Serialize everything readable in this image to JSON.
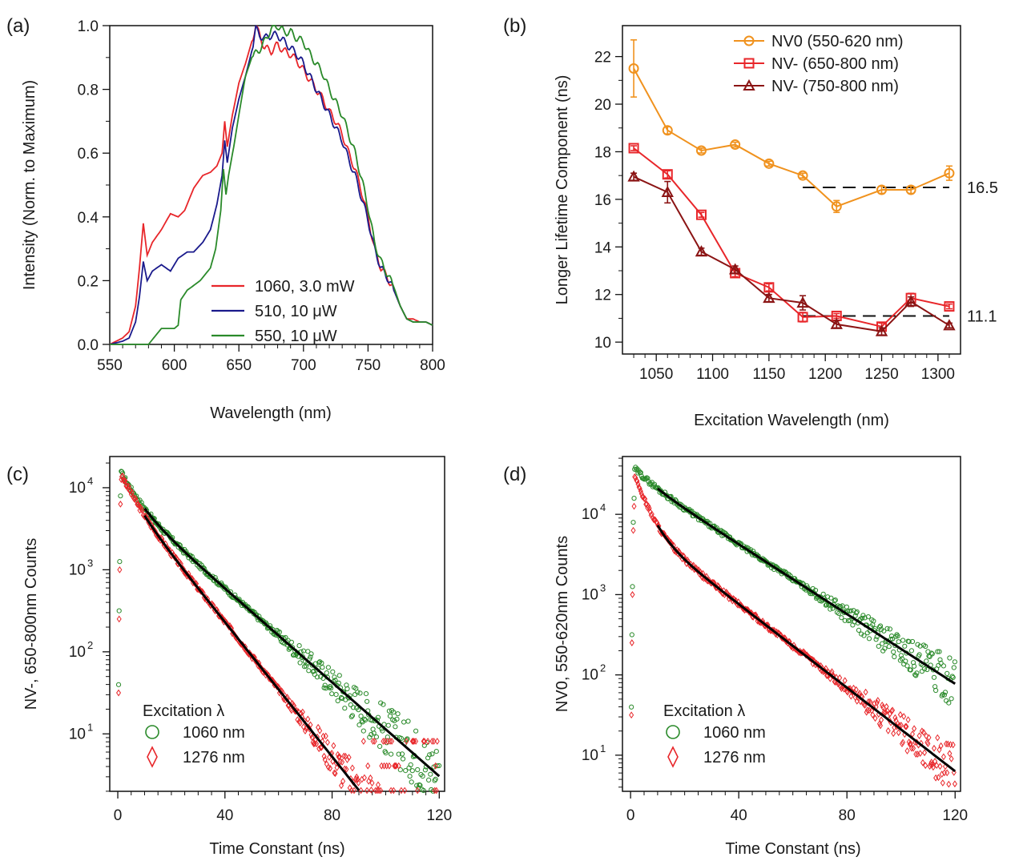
{
  "figure": {
    "description_panels": [
      "(a)",
      "(b)",
      "(c)",
      "(d)"
    ]
  },
  "chart_data": [
    {
      "panel": "(a)",
      "type": "line",
      "title": "",
      "xlabel": "Wavelength (nm)",
      "ylabel": "Intensity (Norm. to Maximum)",
      "xlim": [
        550,
        800
      ],
      "ylim": [
        0,
        1.0
      ],
      "xticks": [
        550,
        600,
        650,
        700,
        750,
        800
      ],
      "yticks": [
        0.0,
        0.2,
        0.4,
        0.6,
        0.8,
        1.0
      ],
      "ytick_labels": [
        "0.0",
        "0.2",
        "0.4",
        "0.6",
        "0.8",
        "1.0"
      ],
      "legend_position": "bottom-right",
      "series": [
        {
          "name": "1060, 3.0 mW",
          "color": "#e8262a",
          "x": [
            550,
            560,
            565,
            570,
            573,
            576,
            579,
            583,
            590,
            597,
            603,
            608,
            615,
            622,
            628,
            633,
            637,
            639,
            641,
            645,
            650,
            655,
            660,
            663,
            666,
            670,
            675,
            680,
            685,
            690,
            695,
            700,
            705,
            710,
            715,
            720,
            725,
            730,
            735,
            740,
            745,
            750,
            755,
            760,
            765,
            770,
            775,
            780,
            785,
            790,
            795,
            800
          ],
          "y": [
            0.0,
            0.02,
            0.04,
            0.12,
            0.24,
            0.38,
            0.28,
            0.32,
            0.36,
            0.41,
            0.4,
            0.42,
            0.49,
            0.53,
            0.54,
            0.56,
            0.6,
            0.7,
            0.62,
            0.72,
            0.82,
            0.88,
            0.95,
            1.0,
            0.97,
            0.93,
            0.92,
            0.94,
            0.92,
            0.91,
            0.89,
            0.86,
            0.83,
            0.8,
            0.77,
            0.73,
            0.7,
            0.66,
            0.6,
            0.55,
            0.48,
            0.4,
            0.3,
            0.24,
            0.21,
            0.17,
            0.12,
            0.08,
            0.08,
            0.07,
            0.07,
            0.06
          ]
        },
        {
          "name": "510, 10 μW",
          "color": "#1a1a8c",
          "x": [
            550,
            560,
            565,
            570,
            573,
            576,
            579,
            583,
            590,
            597,
            603,
            610,
            615,
            622,
            628,
            633,
            637,
            639,
            641,
            645,
            650,
            655,
            660,
            663,
            666,
            670,
            675,
            680,
            685,
            690,
            695,
            700,
            705,
            710,
            715,
            720,
            725,
            730,
            735,
            740,
            745,
            750,
            755,
            760,
            765,
            770,
            775,
            780,
            785,
            790,
            795,
            800
          ],
          "y": [
            0.0,
            0.01,
            0.02,
            0.07,
            0.15,
            0.26,
            0.2,
            0.23,
            0.25,
            0.23,
            0.27,
            0.29,
            0.29,
            0.32,
            0.36,
            0.44,
            0.53,
            0.64,
            0.57,
            0.68,
            0.77,
            0.84,
            0.92,
            0.99,
            0.97,
            0.96,
            0.97,
            0.97,
            0.95,
            0.93,
            0.91,
            0.88,
            0.84,
            0.8,
            0.76,
            0.72,
            0.68,
            0.64,
            0.58,
            0.53,
            0.46,
            0.39,
            0.3,
            0.24,
            0.21,
            0.17,
            0.12,
            0.08,
            0.07,
            0.07,
            0.07,
            0.06
          ]
        },
        {
          "name": "550, 10 μW",
          "color": "#2a8a2a",
          "x": [
            550,
            560,
            570,
            580,
            590,
            600,
            603,
            605,
            610,
            620,
            628,
            632,
            636,
            638,
            640,
            642,
            646,
            650,
            655,
            660,
            665,
            670,
            675,
            680,
            685,
            690,
            695,
            700,
            705,
            710,
            715,
            720,
            725,
            730,
            735,
            740,
            745,
            750,
            755,
            760,
            765,
            770,
            775,
            780,
            785,
            790,
            795,
            800
          ],
          "y": [
            0.0,
            0.0,
            0.0,
            0.0,
            0.05,
            0.05,
            0.06,
            0.14,
            0.17,
            0.2,
            0.24,
            0.3,
            0.42,
            0.55,
            0.47,
            0.53,
            0.62,
            0.72,
            0.84,
            0.9,
            0.92,
            0.95,
            0.99,
            1.0,
            0.98,
            0.98,
            0.96,
            0.95,
            0.91,
            0.88,
            0.85,
            0.8,
            0.76,
            0.72,
            0.66,
            0.6,
            0.52,
            0.43,
            0.32,
            0.26,
            0.22,
            0.18,
            0.12,
            0.08,
            0.07,
            0.07,
            0.07,
            0.06
          ]
        }
      ]
    },
    {
      "panel": "(b)",
      "type": "line",
      "title": "",
      "xlabel": "Excitation Wavelength (nm)",
      "ylabel": "Longer Lifetime Component  (ns)",
      "xlim": [
        1020,
        1320
      ],
      "ylim": [
        9.5,
        23.3
      ],
      "xticks": [
        1050,
        1100,
        1150,
        1200,
        1250,
        1300
      ],
      "yticks": [
        10,
        12,
        14,
        16,
        18,
        20,
        22
      ],
      "legend_position": "top-right",
      "reference_lines": [
        {
          "value": 16.5,
          "label": "16.5",
          "from_x": 1180,
          "to_x": 1310
        },
        {
          "value": 11.1,
          "label": "11.1",
          "from_x": 1180,
          "to_x": 1310
        }
      ],
      "series": [
        {
          "name": "NV0 (550-620 nm)",
          "color": "#f0921e",
          "marker": "circle",
          "x": [
            1030,
            1060,
            1090,
            1120,
            1150,
            1180,
            1210,
            1250,
            1276,
            1310
          ],
          "y": [
            21.5,
            18.9,
            18.05,
            18.3,
            17.5,
            17.0,
            15.7,
            16.4,
            16.4,
            17.1
          ],
          "err": [
            1.2,
            0.15,
            0.1,
            0.1,
            0.1,
            0.1,
            0.25,
            0.15,
            0.15,
            0.3
          ]
        },
        {
          "name": "NV- (650-800 nm)",
          "color": "#e8262a",
          "marker": "square",
          "x": [
            1030,
            1060,
            1090,
            1120,
            1150,
            1180,
            1210,
            1250,
            1276,
            1310
          ],
          "y": [
            18.15,
            17.05,
            15.35,
            12.9,
            12.3,
            11.05,
            11.1,
            10.65,
            11.85,
            11.5
          ],
          "err": [
            0.1,
            0.15,
            0.1,
            0.15,
            0.15,
            0.2,
            0.1,
            0.15,
            0.2,
            0.1
          ]
        },
        {
          "name": "NV- (750-800 nm)",
          "color": "#8b1414",
          "marker": "triangle",
          "x": [
            1030,
            1060,
            1090,
            1120,
            1150,
            1180,
            1210,
            1250,
            1276,
            1310
          ],
          "y": [
            16.95,
            16.3,
            13.8,
            13.05,
            11.85,
            11.65,
            10.75,
            10.45,
            11.7,
            10.7
          ],
          "err": [
            0.15,
            0.45,
            0.15,
            0.15,
            0.15,
            0.3,
            0.15,
            0.15,
            0.2,
            0.1
          ]
        }
      ]
    },
    {
      "panel": "(c)",
      "type": "scatter",
      "title": "",
      "xlabel": "Time Constant (ns)",
      "ylabel": "NV-, 650-800nm Counts",
      "xlim": [
        -3,
        122
      ],
      "ylim_log10": [
        0.3,
        4.38
      ],
      "xticks": [
        0,
        40,
        80,
        120
      ],
      "yticks_log10": [
        1,
        2,
        3,
        4
      ],
      "legend_title": "Excitation λ",
      "legend_position": "bottom-left",
      "series": [
        {
          "name": "1060 nm",
          "color": "#2a8a2a",
          "marker": "circle",
          "fit_color": "#000000",
          "peak_log10": 4.26,
          "tau_fast": 5,
          "amp_fast": 0.55,
          "tau_slow": 15.2,
          "noise_floor_log10": 1.1
        },
        {
          "name": "1276 nm",
          "color": "#e8262a",
          "marker": "diamond",
          "fit_color": "#000000",
          "peak_log10": 4.26,
          "tau_fast": 4,
          "amp_fast": 0.45,
          "tau_slow": 10.6,
          "noise_floor_log10": 0.3
        }
      ]
    },
    {
      "panel": "(d)",
      "type": "scatter",
      "title": "",
      "xlabel": "Time Constant (ns)",
      "ylabel": "NV0, 550-620nm Counts",
      "xlim": [
        -3,
        122
      ],
      "ylim_log10": [
        0.55,
        4.72
      ],
      "xticks": [
        0,
        40,
        80,
        120
      ],
      "yticks_log10": [
        1,
        2,
        3,
        4
      ],
      "legend_title": "Excitation λ",
      "legend_position": "bottom-left",
      "series": [
        {
          "name": "1060 nm",
          "color": "#2a8a2a",
          "marker": "circle",
          "fit_color": "#000000",
          "peak_log10": 4.62,
          "tau_fast": 6,
          "amp_fast": 0.25,
          "tau_slow": 20,
          "noise_floor_log10": 1.9
        },
        {
          "name": "1276 nm",
          "color": "#e8262a",
          "marker": "diamond",
          "fit_color": "#000000",
          "peak_log10": 4.62,
          "tau_fast": 4,
          "amp_fast": 0.8,
          "tau_slow": 16.7,
          "noise_floor_log10": 0.9
        }
      ]
    }
  ]
}
